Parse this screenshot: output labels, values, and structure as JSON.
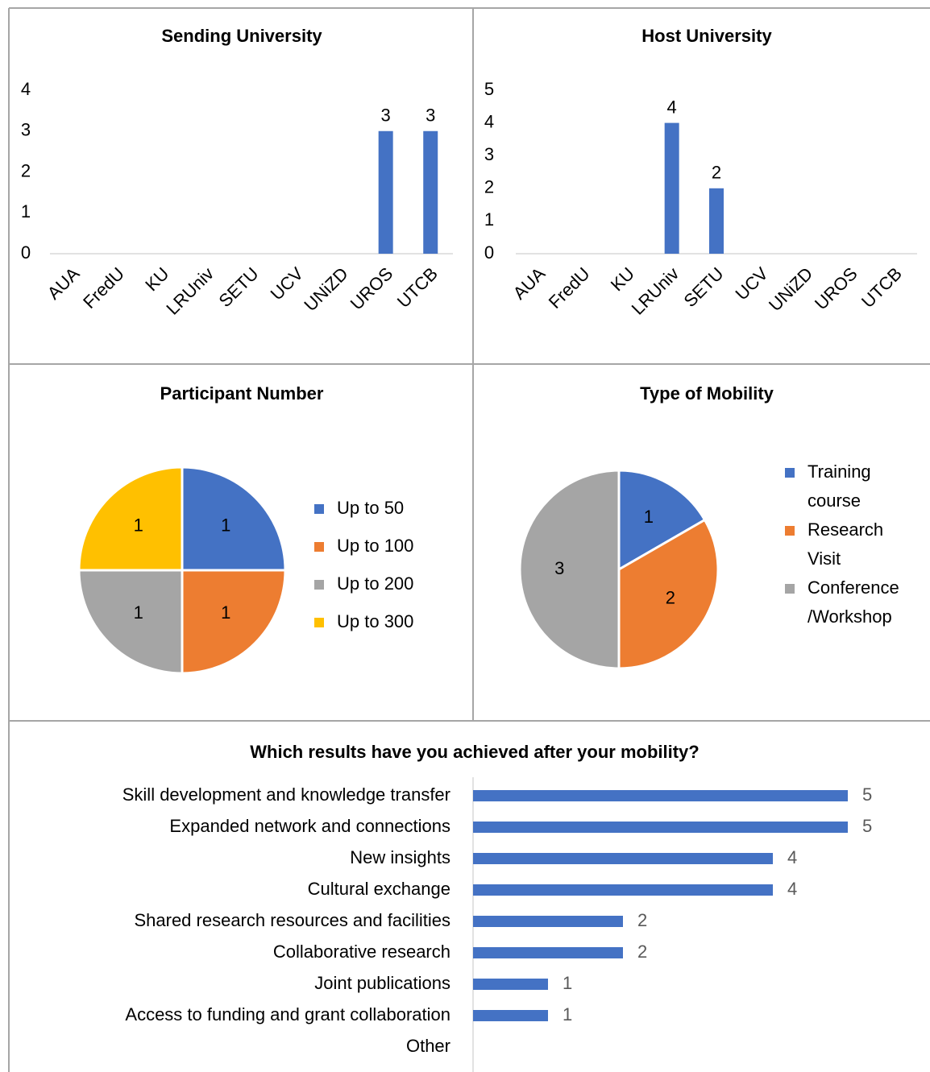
{
  "chart_data": [
    {
      "type": "bar",
      "title": "Sending University",
      "categories": [
        "AUA",
        "FredU",
        "KU",
        "LRUniv",
        "SETU",
        "UCV",
        "UNiZD",
        "UROS",
        "UTCB"
      ],
      "values": [
        0,
        0,
        0,
        0,
        0,
        0,
        0,
        3,
        3
      ],
      "color": "#4472c4",
      "ylim": [
        0,
        4
      ],
      "yticks": [
        0,
        1,
        2,
        3,
        4
      ]
    },
    {
      "type": "bar",
      "title": "Host University",
      "categories": [
        "AUA",
        "FredU",
        "KU",
        "LRUniv",
        "SETU",
        "UCV",
        "UNiZD",
        "UROS",
        "UTCB"
      ],
      "values": [
        0,
        0,
        0,
        4,
        2,
        0,
        0,
        0,
        0
      ],
      "color": "#4472c4",
      "ylim": [
        0,
        5
      ],
      "yticks": [
        0,
        1,
        2,
        3,
        4,
        5
      ]
    },
    {
      "type": "pie",
      "title": "Participant Number",
      "categories": [
        "Up to 50",
        "Up to 100",
        "Up to 200",
        "Up to 300"
      ],
      "values": [
        1,
        1,
        1,
        1
      ],
      "colors": [
        "#4472c4",
        "#ed7d31",
        "#a5a5a5",
        "#ffc000"
      ],
      "legend": "right"
    },
    {
      "type": "pie",
      "title": "Type of Mobility",
      "categories": [
        "Training course",
        "Research Visit",
        "Conference /Workshop"
      ],
      "values": [
        1,
        2,
        3
      ],
      "colors": [
        "#4472c4",
        "#ed7d31",
        "#a5a5a5"
      ],
      "legend": "right"
    },
    {
      "type": "hbar",
      "title": "Which results have you achieved after your mobility?",
      "categories": [
        "Skill development and knowledge transfer",
        "Expanded network and connections",
        "New insights",
        "Cultural exchange",
        "Shared research resources and facilities",
        "Collaborative research",
        "Joint publications",
        "Access to funding and grant collaboration",
        "Other"
      ],
      "values": [
        5,
        5,
        4,
        4,
        2,
        2,
        1,
        1,
        0
      ],
      "color": "#4472c4",
      "xlim": [
        0,
        6
      ]
    }
  ]
}
